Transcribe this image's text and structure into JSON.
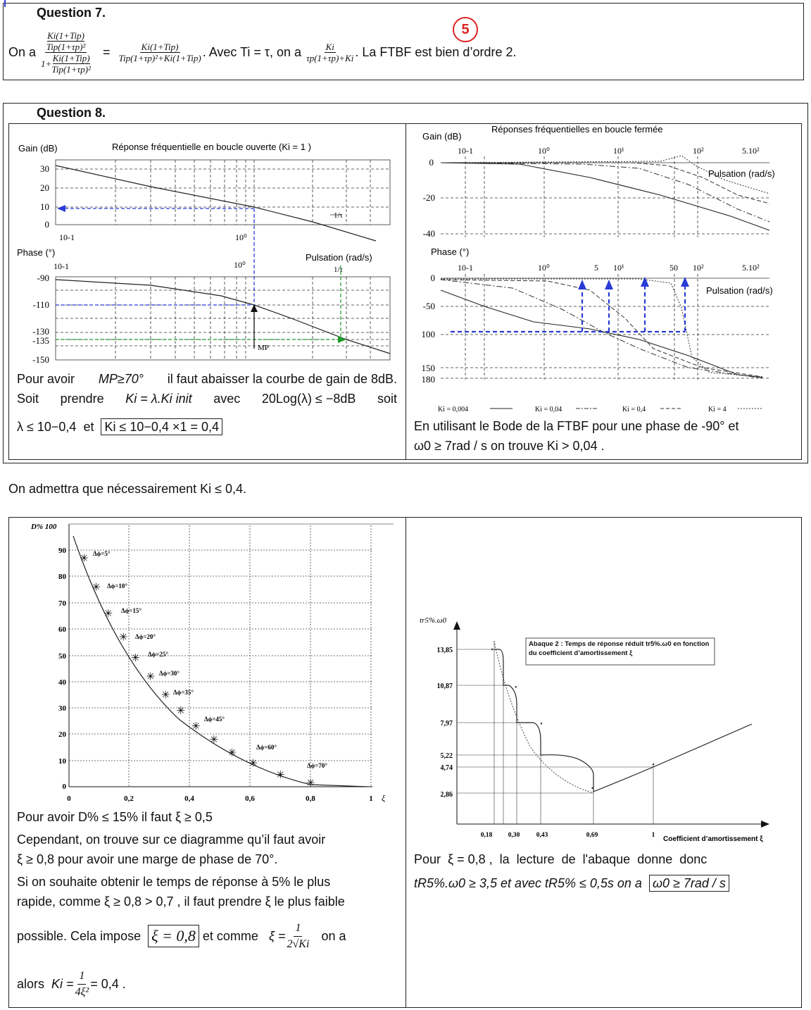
{
  "q7": {
    "title": "Question 7.",
    "badge": "5",
    "on_a": "On a",
    "frac1_num_top": "Ki(1+Tip)",
    "frac1_num_bot": "Tip(1+τp)²",
    "frac1_den_pre": "1+",
    "frac1_den_top": "Ki(1+Tip)",
    "frac1_den_bot": "Tip(1+τp)²",
    "eq": "=",
    "frac2_top": "Ki(1+Tip)",
    "frac2_bot": "Tip(1+τp)²+Ki(1+Tip)",
    "avec": ". Avec Ti = τ, on a",
    "frac3_top": "Ki",
    "frac3_bot": "τp(1+τp)+Ki",
    "conclusion": ". La FTBF est bien d’ordre 2."
  },
  "q8": {
    "title": "Question 8.",
    "bo": {
      "gain_label": "Gain (dB)",
      "title": "Réponse fréquentielle en boucle ouverte (Ki = 1 )",
      "gain_ticks": [
        "30",
        "20",
        "10",
        "0"
      ],
      "x_ticks": [
        "10-1",
        "10⁰"
      ],
      "phase_label": "Phase (°)",
      "pulsation": "Pulsation (rad/s)",
      "tau": "1/τ",
      "phase_ticks": [
        "-90",
        "-110",
        "-130",
        "-135",
        "-150"
      ],
      "mp": "MP"
    },
    "left_text": {
      "l1a": "Pour avoir",
      "l1b": "MP≥70°",
      "l1c": "il faut abaisser la courbe de gain de 8dB.",
      "l2a": "Soit",
      "l2b": "prendre",
      "l2c": "Ki = λ.Ki init",
      "l2d": "avec",
      "l2e": "20Log(λ) ≤ −8dB",
      "l2f": "soit",
      "l3a": "λ ≤ 10−0,4",
      "l3b": "et",
      "l3c": "Ki ≤ 10−0,4 ×1 = 0,4"
    },
    "bf": {
      "gain_label": "Gain (dB)",
      "title": "Réponses fréquentielles en boucle fermée",
      "x_ticks": [
        "10-1",
        "10⁰",
        "10¹",
        "10²",
        "5.10²"
      ],
      "gain_ticks": [
        "0",
        "-20",
        "-40"
      ],
      "pulsation": "Pulsation (rad/s)",
      "phase_label": "Phase (°)",
      "phase_x_ticks": [
        "10-1",
        "10⁰",
        "5",
        "10¹",
        "50",
        "10²",
        "5.10²"
      ],
      "phase_ticks": [
        "0",
        "-50",
        "100",
        "150",
        "180"
      ],
      "legend": [
        "Ki = 0,004",
        "Ki = 0,04",
        "Ki = 0,4",
        "Ki = 4"
      ]
    },
    "right_text": {
      "l1": "En utilisant le Bode de la FTBF pour une phase de -90° et",
      "l2": "ω0 ≥ 7rad / s  on trouve  Ki > 0,04 ."
    }
  },
  "admit": "On admettra que nécessairement Ki ≤ 0,4.",
  "bottom_left": {
    "chart": {
      "ylabel": "D% 100",
      "y_ticks": [
        "90",
        "80",
        "70",
        "60",
        "50",
        "40",
        "30",
        "20",
        "10",
        "0"
      ],
      "x_ticks": [
        "0",
        "0,2",
        "0,4",
        "0,6",
        "0,8",
        "1"
      ],
      "xi": "ξ"
    },
    "t1": "Pour avoir  D% ≤ 15%  il faut  ξ ≥ 0,5",
    "t2": "Cependant, on trouve sur ce diagramme qu’il faut avoir",
    "t3": "ξ ≥ 0,8  pour avoir une marge de phase de 70°.",
    "t4": "Si on souhaite obtenir le temps de réponse à 5% le plus",
    "t5": "rapide, comme  ξ ≥ 0,8 > 0,7 , il faut prendre ξ le plus faible",
    "t6a": "possible. Cela impose",
    "t6b": "ξ = 0,8",
    "t6c": "et comme",
    "t6d": "ξ =",
    "t6e_num": "1",
    "t6e_den": "2√Ki",
    "t6f": "on a",
    "t7a": "alors",
    "t7b": "Ki =",
    "t7c_num": "1",
    "t7c_den": "4ξ²",
    "t7d": "= 0,4 ."
  },
  "bottom_right": {
    "ylabel": "tr5%.ω0",
    "abaque_title": "Abaque 2 : Temps de réponse réduit tr5%.ω0 en fonction du coefficient d’amortissement ξ",
    "y_ticks": [
      "13,85",
      "10,87",
      "7,97",
      "5,22",
      "4,74",
      "2,86"
    ],
    "x_ticks": [
      "0,18",
      "0,30",
      "0,43",
      "0,69",
      "1"
    ],
    "xlabel": "Coefficient d’amortissement ξ",
    "t1": "Pour  ξ = 0,8 ,  la  lecture  de  l'abaque  donne  donc",
    "t2a": "tR5%.ω0 ≥ 3,5  et avec  tR5% ≤ 0,5s  on a",
    "t2b": "ω0 ≥ 7rad / s"
  },
  "chart_data": [
    {
      "type": "scatter",
      "title": "",
      "xlabel": "ξ",
      "ylabel": "D%",
      "xlim": [
        0,
        1
      ],
      "ylim": [
        0,
        100
      ],
      "x": [
        0.05,
        0.09,
        0.13,
        0.18,
        0.22,
        0.27,
        0.32,
        0.37,
        0.42,
        0.48,
        0.54,
        0.61,
        0.7,
        0.8
      ],
      "y": [
        87,
        76,
        66,
        57,
        49,
        42,
        35,
        29,
        23,
        18,
        13,
        9,
        4.5,
        1.5
      ],
      "annotations": [
        "Δϕ=5°",
        "Δϕ=10°",
        "Δϕ=15°",
        "Δϕ=20°",
        "Δϕ=25°",
        "Δϕ=30°",
        "Δϕ=35°",
        "Δϕ=45°",
        "Δϕ=60°",
        "Δϕ=70°"
      ]
    },
    {
      "type": "line",
      "title": "Abaque 2 : Temps de réponse réduit tr5%.ω0 en fonction du coefficient d’amortissement ξ",
      "xlabel": "Coefficient d’amortissement ξ",
      "ylabel": "tr5%.ω0",
      "x": [
        0.18,
        0.3,
        0.43,
        0.69,
        1.0
      ],
      "y": [
        13.85,
        10.87,
        7.97,
        2.86,
        4.74
      ]
    }
  ]
}
